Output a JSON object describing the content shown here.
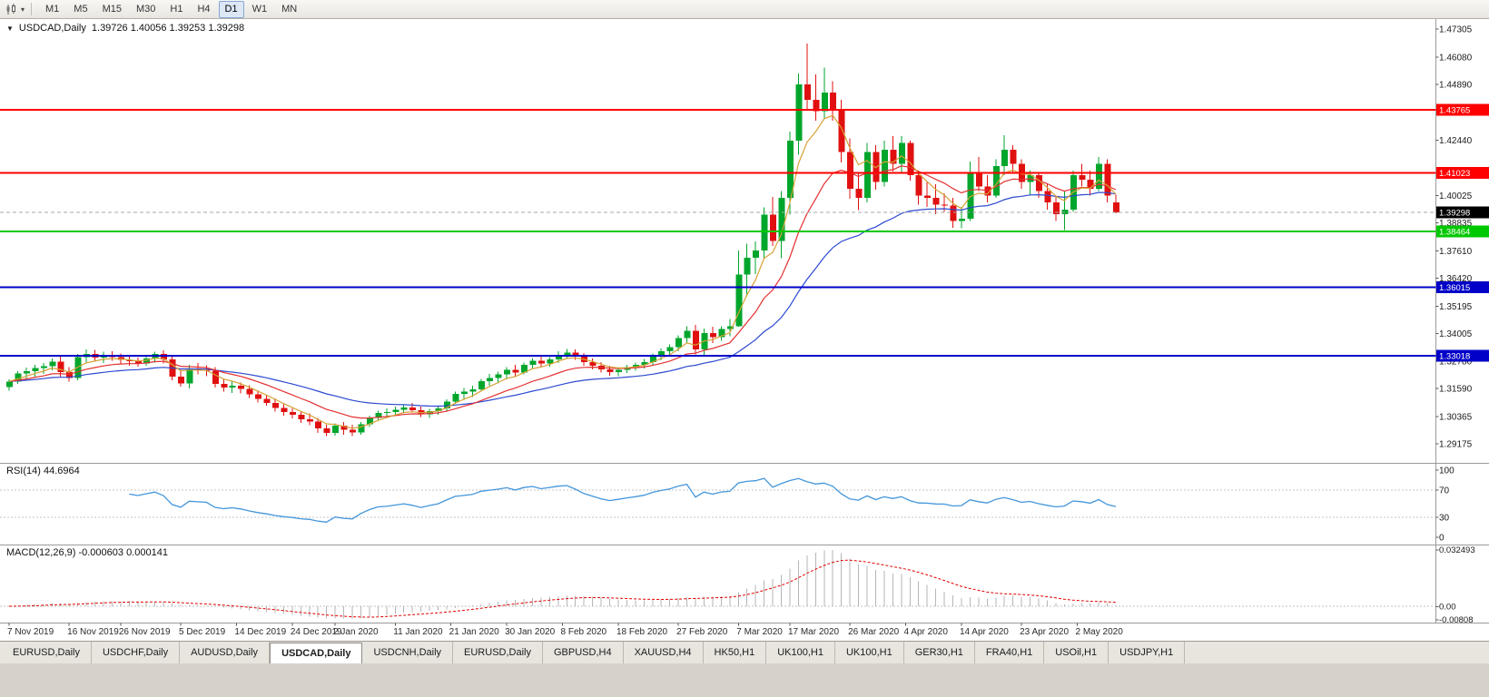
{
  "toolbar": {
    "timeframes": [
      "M1",
      "M5",
      "M15",
      "M30",
      "H1",
      "H4",
      "D1",
      "W1",
      "MN"
    ],
    "active_timeframe": "D1"
  },
  "chart_header": {
    "expander_icon": "▼",
    "title": "USDCAD,Daily",
    "ohlc": "1.39726 1.40056 1.39253 1.39298"
  },
  "chart_data": {
    "type": "candlestick",
    "symbol": "USDCAD",
    "period": "Daily",
    "last_bar": {
      "open": 1.39726,
      "high": 1.40056,
      "low": 1.39253,
      "close": 1.39298
    },
    "candle_up_color": "#00A62C",
    "candle_down_color": "#E01010",
    "y_axis": {
      "min": 1.29175,
      "max": 1.47305,
      "ticks": [
        1.47305,
        1.4608,
        1.4489,
        1.4244,
        1.40025,
        1.38835,
        1.3761,
        1.3642,
        1.35195,
        1.34005,
        1.3278,
        1.3159,
        1.30365,
        1.29175
      ]
    },
    "x_axis_labels": [
      {
        "text": "7 Nov 2019",
        "bar": 0
      },
      {
        "text": "16 Nov 2019",
        "bar": 7
      },
      {
        "text": "26 Nov 2019",
        "bar": 13
      },
      {
        "text": "5 Dec 2019",
        "bar": 20
      },
      {
        "text": "14 Dec 2019",
        "bar": 26.5
      },
      {
        "text": "24 Dec 2019",
        "bar": 33
      },
      {
        "text": "2 Jan 2020",
        "bar": 38
      },
      {
        "text": "11 Jan 2020",
        "bar": 45
      },
      {
        "text": "21 Jan 2020",
        "bar": 51.5
      },
      {
        "text": "30 Jan 2020",
        "bar": 58
      },
      {
        "text": "8 Feb 2020",
        "bar": 64.5
      },
      {
        "text": "18 Feb 2020",
        "bar": 71
      },
      {
        "text": "27 Feb 2020",
        "bar": 78
      },
      {
        "text": "7 Mar 2020",
        "bar": 85
      },
      {
        "text": "17 Mar 2020",
        "bar": 91
      },
      {
        "text": "26 Mar 2020",
        "bar": 98
      },
      {
        "text": "4 Apr 2020",
        "bar": 104.5
      },
      {
        "text": "14 Apr 2020",
        "bar": 111
      },
      {
        "text": "23 Apr 2020",
        "bar": 118
      },
      {
        "text": "2 May 2020",
        "bar": 124.5
      }
    ],
    "hlines": [
      {
        "price": 1.43765,
        "color": "#FF0000"
      },
      {
        "price": 1.41023,
        "color": "#FF0000"
      },
      {
        "price": 1.38464,
        "color": "#00C800"
      },
      {
        "price": 1.36015,
        "color": "#0000C8"
      },
      {
        "price": 1.33018,
        "color": "#0000C8"
      }
    ],
    "current_price": {
      "price": 1.39298,
      "tag_color": "#000000",
      "line_color": "#A8A8A8"
    },
    "overlays": [
      {
        "kind": "ema",
        "period": 30,
        "color": "#2B49D0",
        "name": "slow-ma"
      },
      {
        "kind": "ema",
        "period": 13,
        "color": "#E43030",
        "name": "medium-ma"
      },
      {
        "kind": "ema",
        "period": 5,
        "color": "#D7A135",
        "name": "fast-ma"
      }
    ],
    "rsi": {
      "label": "RSI(14) 44.6964",
      "period": 14,
      "value": 44.6964,
      "line_color": "#4396DB",
      "levels": [
        {
          "text": "100",
          "value": 100,
          "dotted": false
        },
        {
          "text": "70",
          "value": 70,
          "dotted": true
        },
        {
          "text": "30",
          "value": 30,
          "dotted": true
        },
        {
          "text": "0",
          "value": 0,
          "dotted": false
        }
      ]
    },
    "macd": {
      "label": "MACD(12,26,9) -0.000603 0.000141",
      "fast": 12,
      "slow": 26,
      "signal": 9,
      "macd_value": -0.000603,
      "signal_value": 0.000141,
      "histogram_color": "#B6B6B6",
      "signal_color": "#E00000",
      "axis_labels": [
        {
          "text": "0.032493",
          "anchor": "top"
        },
        {
          "text": "0.00",
          "anchor": "zero"
        },
        {
          "text": "-0.00808",
          "anchor": "bottom"
        }
      ]
    },
    "candles": [
      [
        1.3165,
        1.32,
        1.315,
        1.319
      ],
      [
        1.319,
        1.3235,
        1.318,
        1.3225
      ],
      [
        1.3225,
        1.325,
        1.32,
        1.3235
      ],
      [
        1.3235,
        1.3262,
        1.3212,
        1.3248
      ],
      [
        1.3248,
        1.327,
        1.3222,
        1.3256
      ],
      [
        1.3256,
        1.329,
        1.3238,
        1.3276
      ],
      [
        1.3276,
        1.33,
        1.3212,
        1.323
      ],
      [
        1.323,
        1.3252,
        1.319,
        1.3206
      ],
      [
        1.3206,
        1.331,
        1.3196,
        1.3296
      ],
      [
        1.3296,
        1.333,
        1.3268,
        1.331
      ],
      [
        1.331,
        1.3328,
        1.3278,
        1.3294
      ],
      [
        1.3294,
        1.332,
        1.327,
        1.3302
      ],
      [
        1.3302,
        1.3322,
        1.328,
        1.3296
      ],
      [
        1.3296,
        1.3312,
        1.3268,
        1.3284
      ],
      [
        1.3284,
        1.33,
        1.3258,
        1.3278
      ],
      [
        1.3278,
        1.3294,
        1.3254,
        1.3268
      ],
      [
        1.3268,
        1.33,
        1.3258,
        1.329
      ],
      [
        1.329,
        1.332,
        1.3272,
        1.331
      ],
      [
        1.331,
        1.3326,
        1.3268,
        1.3286
      ],
      [
        1.3286,
        1.33,
        1.3196,
        1.3212
      ],
      [
        1.3212,
        1.324,
        1.3168,
        1.3182
      ],
      [
        1.3182,
        1.3262,
        1.316,
        1.3246
      ],
      [
        1.3246,
        1.327,
        1.322,
        1.324
      ],
      [
        1.324,
        1.326,
        1.3214,
        1.3236
      ],
      [
        1.3236,
        1.3252,
        1.3164,
        1.318
      ],
      [
        1.318,
        1.3202,
        1.3146,
        1.3164
      ],
      [
        1.3164,
        1.319,
        1.314,
        1.3172
      ],
      [
        1.3172,
        1.3186,
        1.3138,
        1.3158
      ],
      [
        1.3158,
        1.3174,
        1.3118,
        1.3134
      ],
      [
        1.3134,
        1.315,
        1.3098,
        1.3114
      ],
      [
        1.3114,
        1.3132,
        1.3084,
        1.3096
      ],
      [
        1.3096,
        1.3116,
        1.3058,
        1.3074
      ],
      [
        1.3074,
        1.309,
        1.304,
        1.3056
      ],
      [
        1.3056,
        1.3072,
        1.3028,
        1.3044
      ],
      [
        1.3044,
        1.306,
        1.3008,
        1.3024
      ],
      [
        1.3024,
        1.305,
        1.2998,
        1.3014
      ],
      [
        1.3014,
        1.303,
        1.2966,
        1.2984
      ],
      [
        1.2984,
        1.3,
        1.2952,
        1.2966
      ],
      [
        1.2966,
        1.3006,
        1.2954,
        1.2996
      ],
      [
        1.2996,
        1.3012,
        1.2958,
        1.2978
      ],
      [
        1.2978,
        1.3,
        1.2952,
        1.2968
      ],
      [
        1.2968,
        1.3012,
        1.2958,
        1.3002
      ],
      [
        1.3002,
        1.304,
        1.299,
        1.303
      ],
      [
        1.303,
        1.3062,
        1.3018,
        1.3052
      ],
      [
        1.3052,
        1.3072,
        1.303,
        1.3056
      ],
      [
        1.3056,
        1.308,
        1.304,
        1.3066
      ],
      [
        1.3066,
        1.309,
        1.305,
        1.3076
      ],
      [
        1.3076,
        1.3096,
        1.3054,
        1.3064
      ],
      [
        1.3064,
        1.308,
        1.3034,
        1.3046
      ],
      [
        1.3046,
        1.307,
        1.303,
        1.306
      ],
      [
        1.306,
        1.3082,
        1.3044,
        1.3072
      ],
      [
        1.3072,
        1.3112,
        1.3062,
        1.3102
      ],
      [
        1.3102,
        1.3146,
        1.3092,
        1.3136
      ],
      [
        1.3136,
        1.3162,
        1.311,
        1.3146
      ],
      [
        1.3146,
        1.3172,
        1.3122,
        1.3156
      ],
      [
        1.3156,
        1.3202,
        1.3146,
        1.3192
      ],
      [
        1.3192,
        1.3222,
        1.3172,
        1.3206
      ],
      [
        1.3206,
        1.3232,
        1.3182,
        1.322
      ],
      [
        1.322,
        1.3252,
        1.32,
        1.324
      ],
      [
        1.324,
        1.3262,
        1.321,
        1.3228
      ],
      [
        1.3228,
        1.3272,
        1.322,
        1.3262
      ],
      [
        1.3262,
        1.3292,
        1.3242,
        1.328
      ],
      [
        1.328,
        1.3302,
        1.3252,
        1.3268
      ],
      [
        1.3268,
        1.3296,
        1.3254,
        1.3286
      ],
      [
        1.3286,
        1.3322,
        1.327,
        1.3306
      ],
      [
        1.3306,
        1.3332,
        1.329,
        1.3316
      ],
      [
        1.3316,
        1.333,
        1.3284,
        1.3298
      ],
      [
        1.3298,
        1.3314,
        1.3258,
        1.3274
      ],
      [
        1.3274,
        1.329,
        1.3242,
        1.3258
      ],
      [
        1.3258,
        1.3274,
        1.3228,
        1.3242
      ],
      [
        1.3242,
        1.3258,
        1.3216,
        1.323
      ],
      [
        1.323,
        1.325,
        1.3214,
        1.324
      ],
      [
        1.324,
        1.3262,
        1.3226,
        1.3252
      ],
      [
        1.3252,
        1.3272,
        1.3236,
        1.3262
      ],
      [
        1.3262,
        1.3288,
        1.3246,
        1.3274
      ],
      [
        1.3274,
        1.3312,
        1.3262,
        1.3302
      ],
      [
        1.3302,
        1.3334,
        1.3282,
        1.3322
      ],
      [
        1.3322,
        1.3352,
        1.33,
        1.334
      ],
      [
        1.334,
        1.3392,
        1.3322,
        1.338
      ],
      [
        1.338,
        1.3432,
        1.336,
        1.3412
      ],
      [
        1.3412,
        1.3438,
        1.3308,
        1.333
      ],
      [
        1.333,
        1.3422,
        1.3306,
        1.3402
      ],
      [
        1.3402,
        1.343,
        1.3358,
        1.3384
      ],
      [
        1.3384,
        1.3432,
        1.3368,
        1.342
      ],
      [
        1.342,
        1.3462,
        1.3388,
        1.3432
      ],
      [
        1.3432,
        1.3762,
        1.343,
        1.3658
      ],
      [
        1.3658,
        1.3792,
        1.3562,
        1.373
      ],
      [
        1.373,
        1.3802,
        1.366,
        1.3762
      ],
      [
        1.3762,
        1.395,
        1.373,
        1.392
      ],
      [
        1.392,
        1.3996,
        1.3782,
        1.3804
      ],
      [
        1.3804,
        1.4022,
        1.3728,
        1.3992
      ],
      [
        1.3992,
        1.4282,
        1.392,
        1.4242
      ],
      [
        1.4242,
        1.4536,
        1.4182,
        1.4488
      ],
      [
        1.4488,
        1.4668,
        1.438,
        1.4422
      ],
      [
        1.4422,
        1.4532,
        1.433,
        1.4372
      ],
      [
        1.4372,
        1.4562,
        1.4342,
        1.4452
      ],
      [
        1.4452,
        1.4502,
        1.433,
        1.4382
      ],
      [
        1.4382,
        1.4422,
        1.4148,
        1.4192
      ],
      [
        1.4192,
        1.4252,
        1.3988,
        1.4032
      ],
      [
        1.4032,
        1.4102,
        1.394,
        1.3992
      ],
      [
        1.3992,
        1.4232,
        1.3972,
        1.4192
      ],
      [
        1.4192,
        1.4222,
        1.4028,
        1.4062
      ],
      [
        1.4062,
        1.4242,
        1.4042,
        1.4202
      ],
      [
        1.4202,
        1.4262,
        1.4108,
        1.4142
      ],
      [
        1.4142,
        1.4262,
        1.4102,
        1.4232
      ],
      [
        1.4232,
        1.4242,
        1.4068,
        1.4092
      ],
      [
        1.4092,
        1.4112,
        1.3962,
        1.4002
      ],
      [
        1.4002,
        1.4062,
        1.3952,
        1.3992
      ],
      [
        1.3992,
        1.4052,
        1.3922,
        1.3962
      ],
      [
        1.3962,
        1.4012,
        1.3932,
        1.3958
      ],
      [
        1.3958,
        1.3992,
        1.3862,
        1.3892
      ],
      [
        1.3892,
        1.3952,
        1.386,
        1.3902
      ],
      [
        1.3902,
        1.4152,
        1.3892,
        1.4102
      ],
      [
        1.4102,
        1.4172,
        1.4022,
        1.4042
      ],
      [
        1.4042,
        1.4092,
        1.3972,
        1.4002
      ],
      [
        1.4002,
        1.4162,
        1.3992,
        1.4132
      ],
      [
        1.4132,
        1.4266,
        1.4092,
        1.4202
      ],
      [
        1.4202,
        1.4222,
        1.4102,
        1.4142
      ],
      [
        1.4142,
        1.4162,
        1.4032,
        1.4062
      ],
      [
        1.4062,
        1.4112,
        1.4002,
        1.4092
      ],
      [
        1.4092,
        1.4102,
        1.3992,
        1.4022
      ],
      [
        1.4022,
        1.4052,
        1.3942,
        1.3972
      ],
      [
        1.3972,
        1.4002,
        1.3892,
        1.3922
      ],
      [
        1.3922,
        1.4022,
        1.3852,
        1.3942
      ],
      [
        1.3942,
        1.4112,
        1.3932,
        1.4092
      ],
      [
        1.4092,
        1.4142,
        1.4042,
        1.4072
      ],
      [
        1.4072,
        1.4112,
        1.4002,
        1.4032
      ],
      [
        1.4032,
        1.4172,
        1.4022,
        1.4142
      ],
      [
        1.4142,
        1.4162,
        1.3972,
        1.4002
      ],
      [
        1.39726,
        1.40056,
        1.39253,
        1.39298
      ]
    ]
  },
  "tabs": {
    "active_index": 3,
    "items": [
      "EURUSD,Daily",
      "USDCHF,Daily",
      "AUDUSD,Daily",
      "USDCAD,Daily",
      "USDCNH,Daily",
      "EURUSD,Daily",
      "GBPUSD,H4",
      "XAUUSD,H4",
      "HK50,H1",
      "UK100,H1",
      "UK100,H1",
      "GER30,H1",
      "FRA40,H1",
      "USOil,H1",
      "USDJPY,H1"
    ]
  }
}
